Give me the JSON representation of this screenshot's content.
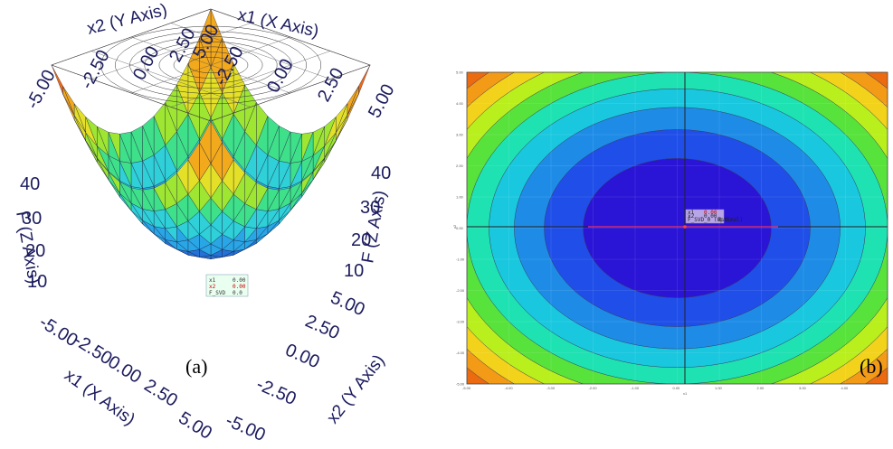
{
  "chart_data": [
    {
      "type": "surface3d",
      "panel_label": "(a)",
      "axes": {
        "x_label": "x1 (X Axis)",
        "y_label": "x2 (Y Axis)",
        "z_label": "F (Z Axis)",
        "x_ticks_back": [
          "-2.50",
          "0.00",
          "2.50",
          "5.00"
        ],
        "y_ticks_back": [
          "-5.00",
          "-2.50",
          "0.00",
          "2.50",
          "5.00"
        ],
        "z_ticks": [
          "10",
          "20",
          "30",
          "40"
        ],
        "x_ticks_front": [
          "-5.00",
          "-2.50",
          "0.00",
          "2.50",
          "5.00"
        ],
        "y_ticks_front": [
          "-5.00",
          "-2.50",
          "0.00",
          "2.50",
          "5.00"
        ],
        "xlim": [
          -5,
          5
        ],
        "ylim": [
          -5,
          5
        ],
        "zlim": [
          0,
          50
        ]
      },
      "tooltip": {
        "rows": [
          {
            "k": "x1",
            "v": "0.00"
          },
          {
            "k": "x2",
            "v": "0.00"
          },
          {
            "k": "F_SVD",
            "v": "0.0"
          }
        ]
      },
      "function": "x1^2 + x2^2"
    },
    {
      "type": "contour",
      "panel_label": "(b)",
      "x_label": "x1",
      "y_label": "x2",
      "x_ticks": [
        "-5.00",
        "-4.00",
        "-3.00",
        "-2.00",
        "-1.00",
        "0.00",
        "1.00",
        "2.00",
        "3.00",
        "4.00"
      ],
      "y_ticks": [
        "5.00",
        "4.00",
        "3.00",
        "2.00",
        "1.00",
        "0.00",
        "-1.00",
        "-2.00",
        "-3.00",
        "-4.00",
        "-5.00"
      ],
      "xlim": [
        -5,
        5
      ],
      "ylim": [
        -5,
        5
      ],
      "levels": [
        5,
        10,
        15,
        20,
        25,
        30,
        35,
        40,
        45
      ],
      "colors": [
        "#2a14d6",
        "#1f4fe8",
        "#1e8ce6",
        "#19c7df",
        "#1ee2b2",
        "#58e23c",
        "#b8ef1c",
        "#f2d21a",
        "#f39a17",
        "#ec6a10"
      ],
      "tooltip": {
        "rows": [
          {
            "k": "x1",
            "v": "0.00"
          },
          {
            "k": "x2",
            "v": "0.00"
          },
          {
            "k": "F_SVD_0 (Optimal)",
            "v": "0.0"
          }
        ]
      },
      "function": "x1^2 + x2^2"
    }
  ]
}
